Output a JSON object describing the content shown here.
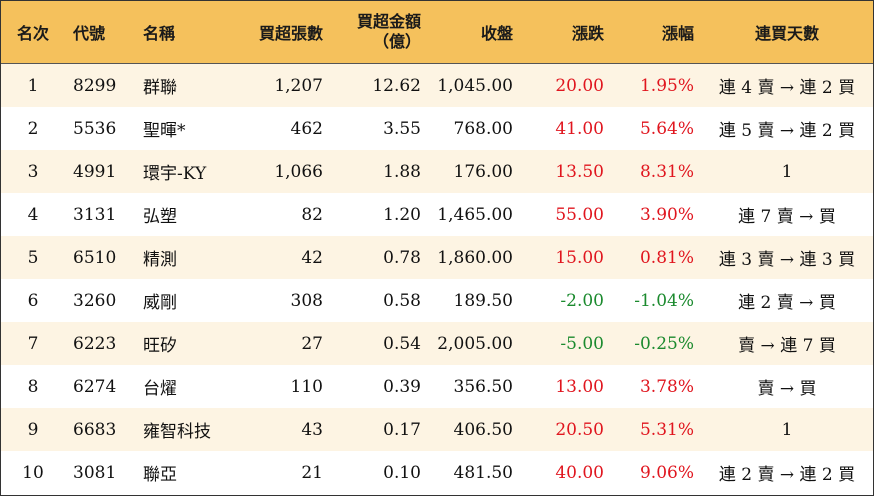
{
  "headers": {
    "rank": "名次",
    "code": "代號",
    "name": "名稱",
    "net_buy_lots": "買超張數",
    "net_buy_amount_line1": "買超金額",
    "net_buy_amount_line2": "（億）",
    "close": "收盤",
    "change": "漲跌",
    "change_pct": "漲幅",
    "buy_streak": "連買天數"
  },
  "colors": {
    "header_bg": "#F5C15C",
    "stripe_bg": "#FDF4E3",
    "up": "#E0151E",
    "down": "#1B8A2E"
  },
  "rows": [
    {
      "rank": "1",
      "code": "8299",
      "name": "群聯",
      "lots": "1,207",
      "amount": "12.62",
      "close": "1,045.00",
      "change": "20.00",
      "pct": "1.95%",
      "streak": "連 4 賣 → 連 2 買",
      "dir": "up"
    },
    {
      "rank": "2",
      "code": "5536",
      "name": "聖暉*",
      "lots": "462",
      "amount": "3.55",
      "close": "768.00",
      "change": "41.00",
      "pct": "5.64%",
      "streak": "連 5 賣 → 連 2 買",
      "dir": "up"
    },
    {
      "rank": "3",
      "code": "4991",
      "name": "環宇-KY",
      "lots": "1,066",
      "amount": "1.88",
      "close": "176.00",
      "change": "13.50",
      "pct": "8.31%",
      "streak": "1",
      "dir": "up"
    },
    {
      "rank": "4",
      "code": "3131",
      "name": "弘塑",
      "lots": "82",
      "amount": "1.20",
      "close": "1,465.00",
      "change": "55.00",
      "pct": "3.90%",
      "streak": "連 7 賣 → 買",
      "dir": "up"
    },
    {
      "rank": "5",
      "code": "6510",
      "name": "精測",
      "lots": "42",
      "amount": "0.78",
      "close": "1,860.00",
      "change": "15.00",
      "pct": "0.81%",
      "streak": "連 3 賣 → 連 3 買",
      "dir": "up"
    },
    {
      "rank": "6",
      "code": "3260",
      "name": "威剛",
      "lots": "308",
      "amount": "0.58",
      "close": "189.50",
      "change": "-2.00",
      "pct": "-1.04%",
      "streak": "連 2 賣 → 買",
      "dir": "down"
    },
    {
      "rank": "7",
      "code": "6223",
      "name": "旺矽",
      "lots": "27",
      "amount": "0.54",
      "close": "2,005.00",
      "change": "-5.00",
      "pct": "-0.25%",
      "streak": "賣 → 連 7 買",
      "dir": "down"
    },
    {
      "rank": "8",
      "code": "6274",
      "name": "台燿",
      "lots": "110",
      "amount": "0.39",
      "close": "356.50",
      "change": "13.00",
      "pct": "3.78%",
      "streak": "賣 → 買",
      "dir": "up"
    },
    {
      "rank": "9",
      "code": "6683",
      "name": "雍智科技",
      "lots": "43",
      "amount": "0.17",
      "close": "406.50",
      "change": "20.50",
      "pct": "5.31%",
      "streak": "1",
      "dir": "up"
    },
    {
      "rank": "10",
      "code": "3081",
      "name": "聯亞",
      "lots": "21",
      "amount": "0.10",
      "close": "481.50",
      "change": "40.00",
      "pct": "9.06%",
      "streak": "連 2 賣 → 連 2 買",
      "dir": "up"
    }
  ]
}
